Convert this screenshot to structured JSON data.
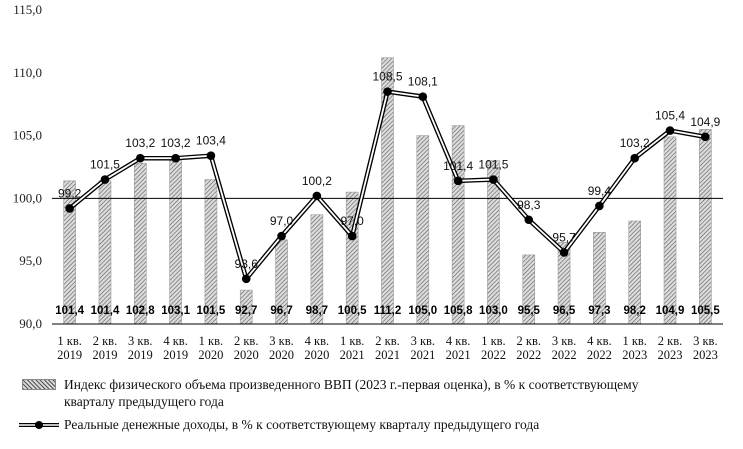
{
  "chart_data": {
    "type": "bar",
    "categories": [
      "1 кв. 2019",
      "2 кв. 2019",
      "3 кв. 2019",
      "4 кв. 2019",
      "1 кв. 2020",
      "2 кв. 2020",
      "3 кв. 2020",
      "4 кв. 2020",
      "1 кв. 2021",
      "2 кв. 2021",
      "3 кв. 2021",
      "4 кв. 2021",
      "1 кв. 2022",
      "2 кв. 2022",
      "3 кв. 2022",
      "4 кв. 2022",
      "1 кв. 2023",
      "2 кв. 2023",
      "3 кв. 2023"
    ],
    "category_lines": [
      [
        "1 кв.",
        "2019"
      ],
      [
        "2 кв.",
        "2019"
      ],
      [
        "3 кв.",
        "2019"
      ],
      [
        "4 кв.",
        "2019"
      ],
      [
        "1 кв.",
        "2020"
      ],
      [
        "2 кв.",
        "2020"
      ],
      [
        "3 кв.",
        "2020"
      ],
      [
        "4 кв.",
        "2020"
      ],
      [
        "1 кв.",
        "2021"
      ],
      [
        "2 кв.",
        "2021"
      ],
      [
        "3 кв.",
        "2021"
      ],
      [
        "4 кв.",
        "2021"
      ],
      [
        "1 кв.",
        "2022"
      ],
      [
        "2 кв.",
        "2022"
      ],
      [
        "3 кв.",
        "2022"
      ],
      [
        "4 кв.",
        "2022"
      ],
      [
        "1 кв.",
        "2023"
      ],
      [
        "2 кв.",
        "2023"
      ],
      [
        "3 кв.",
        "2023"
      ]
    ],
    "series": [
      {
        "name": "Индекс физического объема произведенного ВВП (2023 г.-первая оценка), в % к соответствующему кварталу предыдущего года",
        "type": "bar",
        "values": [
          101.4,
          101.4,
          102.8,
          103.1,
          101.5,
          92.7,
          96.7,
          98.7,
          100.5,
          111.2,
          105.0,
          105.8,
          103.0,
          95.5,
          96.5,
          97.3,
          98.2,
          104.9,
          105.5
        ],
        "labels": [
          "101,4",
          "101,4",
          "102,8",
          "103,1",
          "101,5",
          "92,7",
          "96,7",
          "98,7",
          "100,5",
          "111,2",
          "105,0",
          "105,8",
          "103,0",
          "95,5",
          "96,5",
          "97,3",
          "98,2",
          "104,9",
          "105,5"
        ]
      },
      {
        "name": "Реальные денежные доходы, в % к соответствующему кварталу предыдущего года",
        "type": "line",
        "values": [
          99.2,
          101.5,
          103.2,
          103.2,
          103.4,
          93.6,
          97.0,
          100.2,
          97.0,
          108.5,
          108.1,
          101.4,
          101.5,
          98.3,
          95.7,
          99.4,
          103.2,
          105.4,
          104.9
        ],
        "labels": [
          "99,2",
          "101,5",
          "103,2",
          "103,2",
          "103,4",
          "93,6",
          "97,0",
          "100,2",
          "97,0",
          "108,5",
          "108,1",
          "101,4",
          "101,5",
          "98,3",
          "95,7",
          "99,4",
          "103,2",
          "105,4",
          "104,9"
        ]
      }
    ],
    "yticks": [
      90,
      95,
      100,
      105,
      110,
      115
    ],
    "ytick_labels": [
      "90,0",
      "95,0",
      "100,0",
      "105,0",
      "110,0",
      "115,0"
    ],
    "ylim": [
      90,
      115
    ],
    "reference_line": 100,
    "legend": [
      "Индекс физического объема произведенного ВВП (2023 г.-первая оценка), в % к соответствующему кварталу предыдущего года",
      "Реальные денежные доходы, в % к соответствующему кварталу предыдущего года"
    ],
    "legend_position": "bottom",
    "colors": {
      "bar_fill": "#d9d9d9",
      "bar_hatch": "#555555",
      "line": "#000000",
      "marker": "#000000"
    }
  },
  "legend": {
    "bar_line1": "Индекс физического объема произведенного ВВП (2023 г.-первая оценка), в % к соответствующему",
    "bar_line2": "кварталу предыдущего года",
    "line_label": "Реальные денежные доходы, в % к соответствующему кварталу предыдущего года"
  }
}
